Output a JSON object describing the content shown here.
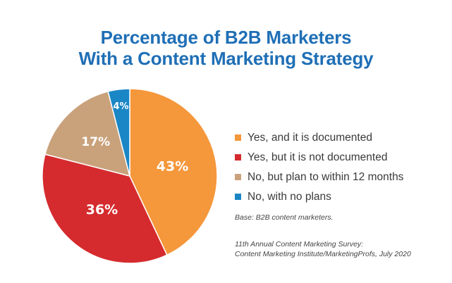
{
  "title": {
    "line1": "Percentage of B2B Marketers",
    "line2": "With a Content Marketing Strategy"
  },
  "colors": {
    "title": "#1f6fb6",
    "documented": "#f5973b",
    "not_documented": "#d52b2e",
    "plan_to": "#c9a27c",
    "no_plans": "#1b86c5"
  },
  "chart_data": {
    "type": "pie",
    "title": "Percentage of B2B Marketers With a Content Marketing Strategy",
    "slices": [
      {
        "label": "Yes, and it is documented",
        "value": 43,
        "display": "43%",
        "color": "#f5973b"
      },
      {
        "label": "Yes, but it is not documented",
        "value": 36,
        "display": "36%",
        "color": "#d52b2e"
      },
      {
        "label": "No, but plan to within 12 months",
        "value": 17,
        "display": "17%",
        "color": "#c9a27c"
      },
      {
        "label": "No, with no plans",
        "value": 4,
        "display": "4%",
        "color": "#1b86c5"
      }
    ],
    "legend_position": "right"
  },
  "notes": {
    "base": "Base: B2B content marketers.",
    "source_line1": "11th Annual Content Marketing Survey:",
    "source_line2": "Content Marketing Institute/MarketingProfs, July 2020"
  }
}
